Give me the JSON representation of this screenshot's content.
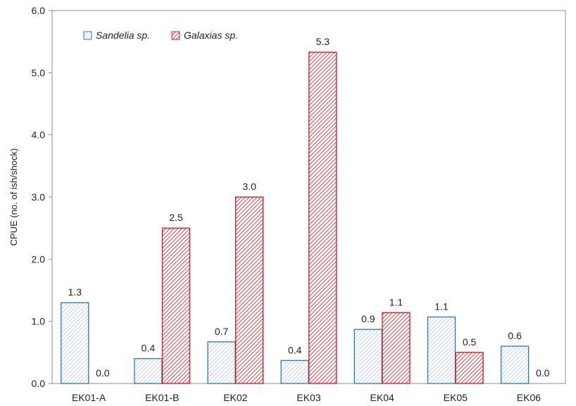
{
  "chart_data": {
    "type": "bar",
    "ylabel": "CPUE (no. of ish/shock)",
    "xlabel": "",
    "ylim": [
      0,
      6
    ],
    "yticks": [
      "0.0",
      "1.0",
      "2.0",
      "3.0",
      "4.0",
      "5.0",
      "6.0"
    ],
    "grid": false,
    "legend_position": "top-left",
    "categories": [
      "EK01-A",
      "EK01-B",
      "EK02",
      "EK03",
      "EK04",
      "EK05",
      "EK06"
    ],
    "series": [
      {
        "name": "Sandelia sp.",
        "color": "#2e75b6",
        "values": [
          1.3,
          0.4,
          0.67,
          0.37,
          0.87,
          1.07,
          0.6
        ],
        "labels": [
          "1.3",
          "0.4",
          "0.7",
          "0.4",
          "0.9",
          "1.1",
          "0.6"
        ]
      },
      {
        "name": "Galaxias sp.",
        "color": "#d9141b",
        "values": [
          0.0,
          2.5,
          3.0,
          5.33,
          1.14,
          0.5,
          0.0
        ],
        "labels": [
          "0.0",
          "2.5",
          "3.0",
          "5.3",
          "1.1",
          "0.5",
          "0.0"
        ]
      }
    ]
  }
}
